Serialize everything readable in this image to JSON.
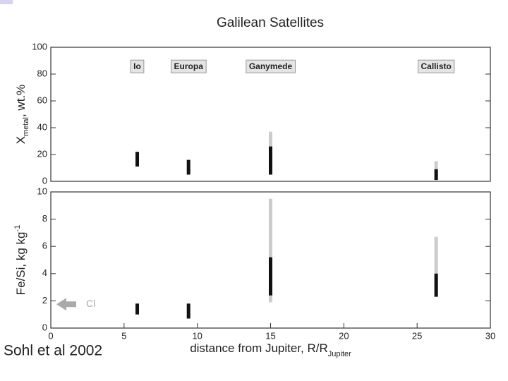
{
  "chart_data": [
    {
      "type": "range",
      "title": "Galilean Satellites",
      "ylabel": {
        "main": "X",
        "sub": "metal",
        "rest": ", wt.%"
      },
      "labels": [
        "Io",
        "Europa",
        "Ganymede",
        "Callisto"
      ],
      "x": [
        5.9,
        9.4,
        15,
        26.3
      ],
      "series": [
        {
          "color": "#cccccc",
          "low": [
            null,
            null,
            5,
            1
          ],
          "high": [
            null,
            null,
            37,
            15
          ]
        },
        {
          "color": "#111111",
          "low": [
            11,
            5,
            5,
            1
          ],
          "high": [
            22,
            16,
            26,
            9
          ]
        }
      ],
      "xlim": [
        0,
        30
      ],
      "ylim": [
        0,
        100
      ],
      "yticks": [
        0,
        20,
        40,
        60,
        80,
        100
      ]
    },
    {
      "type": "range",
      "ylabel": {
        "main": "Fe/Si, kg kg",
        "sup": "-1"
      },
      "xlabel": {
        "main": "distance from Jupiter, R/R",
        "sub": "Jupiter"
      },
      "x": [
        5.9,
        9.4,
        15,
        26.3
      ],
      "series": [
        {
          "color": "#cccccc",
          "low": [
            null,
            null,
            1.9,
            2.3
          ],
          "high": [
            null,
            null,
            9.5,
            6.7
          ]
        },
        {
          "color": "#111111",
          "low": [
            1.0,
            0.7,
            2.4,
            2.3
          ],
          "high": [
            1.8,
            1.8,
            5.2,
            4.0
          ]
        }
      ],
      "annotation": {
        "text": "Cl",
        "y": 1.75
      },
      "xlim": [
        0,
        30
      ],
      "xticks": [
        0,
        5,
        10,
        15,
        20,
        25,
        30
      ],
      "ylim": [
        0,
        10
      ],
      "yticks": [
        0,
        2,
        4,
        6,
        8,
        10
      ]
    }
  ],
  "source": "Sohl et al 2002"
}
